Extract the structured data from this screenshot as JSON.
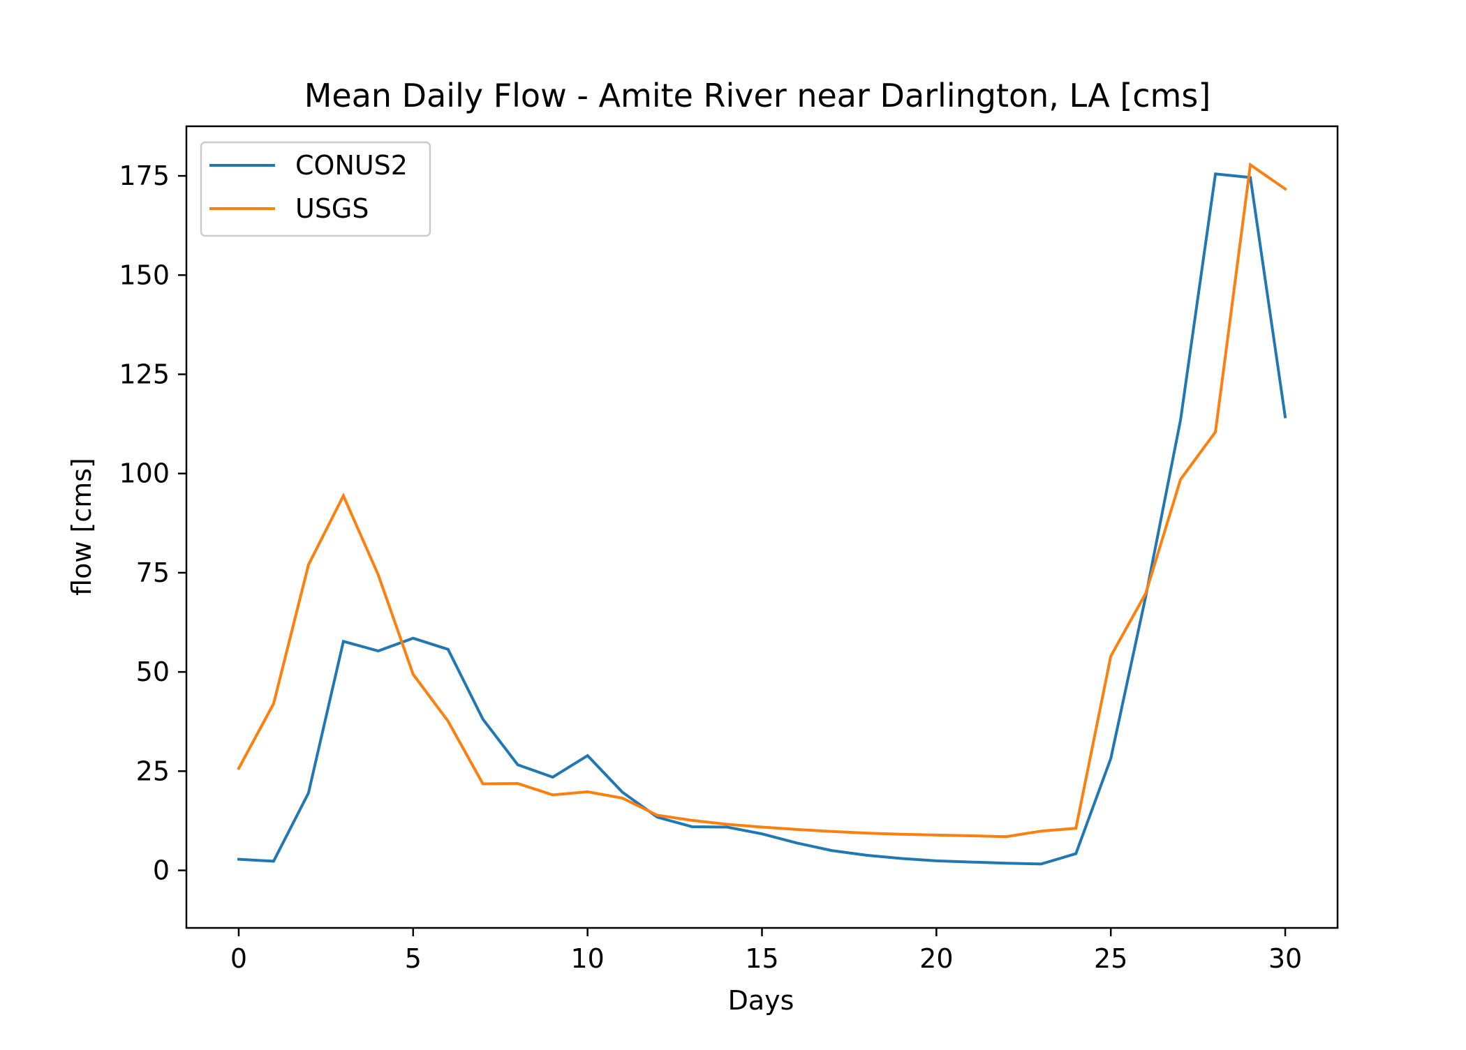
{
  "chart_data": {
    "type": "line",
    "title": "Mean Daily Flow - Amite River near Darlington, LA [cms]",
    "xlabel": "Days",
    "ylabel": "flow [cms]",
    "xlim": [
      -1.5,
      31.5
    ],
    "ylim": [
      -14.5,
      187.5
    ],
    "xticks": [
      0,
      5,
      10,
      15,
      20,
      25,
      30
    ],
    "yticks": [
      0,
      25,
      50,
      75,
      100,
      125,
      150,
      175
    ],
    "grid": false,
    "legend_position": "top-left",
    "x": [
      0,
      1,
      2,
      3,
      4,
      5,
      6,
      7,
      8,
      9,
      10,
      11,
      12,
      13,
      14,
      15,
      16,
      17,
      18,
      19,
      20,
      21,
      22,
      23,
      24,
      25,
      26,
      27,
      28,
      29,
      30
    ],
    "series": [
      {
        "name": "CONUS2",
        "color": "#1f77b4",
        "values": [
          2.8,
          2.3,
          19.5,
          57.7,
          55.3,
          58.5,
          55.7,
          38.1,
          26.6,
          23.5,
          28.9,
          19.7,
          13.4,
          11.0,
          10.9,
          9.2,
          6.9,
          5.0,
          3.8,
          3.0,
          2.4,
          2.1,
          1.8,
          1.6,
          4.2,
          28.2,
          69.0,
          113.5,
          175.5,
          174.6,
          114.3
        ]
      },
      {
        "name": "USGS",
        "color": "#ff7f0e",
        "values": [
          25.7,
          42.0,
          77.0,
          94.4,
          74.5,
          49.4,
          37.6,
          21.8,
          21.9,
          19.0,
          19.8,
          18.2,
          13.9,
          12.6,
          11.6,
          10.9,
          10.3,
          9.8,
          9.4,
          9.1,
          8.9,
          8.7,
          8.5,
          9.9,
          10.6,
          54.0,
          69.8,
          98.5,
          110.5,
          177.8,
          171.7
        ]
      }
    ]
  }
}
